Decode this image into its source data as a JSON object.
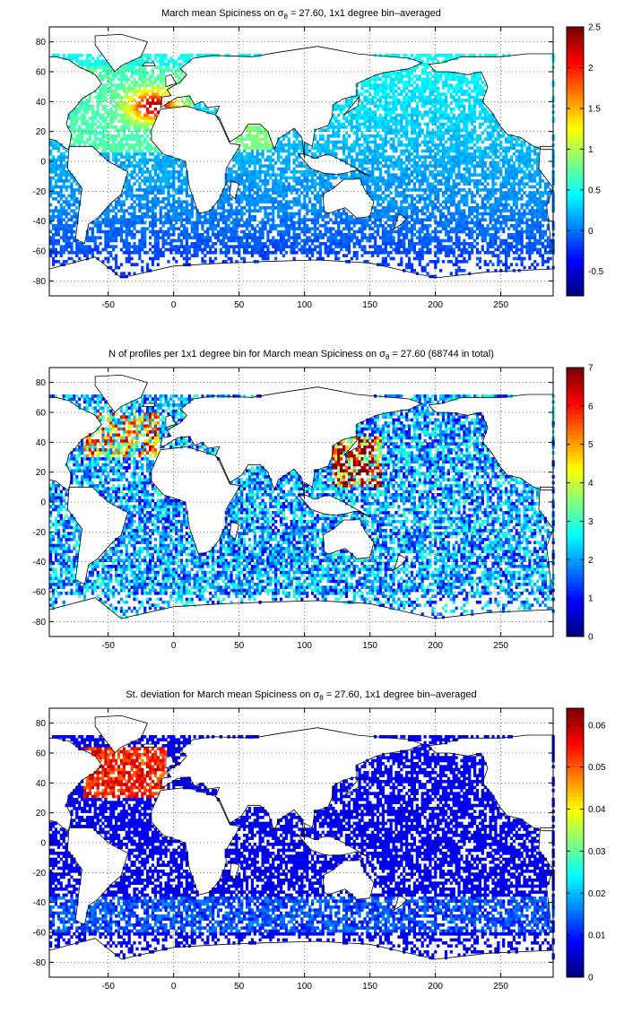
{
  "chart_data": [
    {
      "type": "heatmap",
      "title_pre": "March mean Spiciness on ",
      "title_post": " = 27.60, 1x1 degree bin–averaged",
      "xlim": [
        -95,
        290
      ],
      "ylim": [
        -90,
        90
      ],
      "xticks": [
        "-50",
        "0",
        "50",
        "100",
        "150",
        "200",
        "250"
      ],
      "yticks": [
        "80",
        "60",
        "40",
        "20",
        "0",
        "-20",
        "-40",
        "-60",
        "-80"
      ],
      "colorbar": {
        "min": -0.8,
        "max": 2.5,
        "ticks": [
          "2.5",
          "2",
          "1.5",
          "1",
          "0.5",
          "0",
          "-0.5"
        ]
      },
      "grid": true
    },
    {
      "type": "heatmap",
      "title_pre": "N of profiles per 1x1 degree bin for March mean Spiciness on ",
      "title_post": " = 27.60 (68744 in total)",
      "xlim": [
        -95,
        290
      ],
      "ylim": [
        -90,
        90
      ],
      "xticks": [
        "-50",
        "0",
        "50",
        "100",
        "150",
        "200",
        "250"
      ],
      "yticks": [
        "80",
        "60",
        "40",
        "20",
        "0",
        "-20",
        "-40",
        "-60",
        "-80"
      ],
      "colorbar": {
        "min": 0,
        "max": 7,
        "ticks": [
          "7",
          "6",
          "5",
          "4",
          "3",
          "2",
          "1",
          "0"
        ]
      },
      "total_profiles": 68744,
      "grid": true
    },
    {
      "type": "heatmap",
      "title_pre": "St. deviation for March mean Spiciness on ",
      "title_post": " = 27.60, 1x1 degree bin–averaged",
      "xlim": [
        -95,
        290
      ],
      "ylim": [
        -90,
        90
      ],
      "xticks": [
        "-50",
        "0",
        "50",
        "100",
        "150",
        "200",
        "250"
      ],
      "yticks": [
        "80",
        "60",
        "40",
        "20",
        "0",
        "-20",
        "-40",
        "-60",
        "-80"
      ],
      "colorbar": {
        "min": 0,
        "max": 0.064,
        "ticks": [
          "0.06",
          "0.05",
          "0.04",
          "0.03",
          "0.02",
          "0.01",
          "0"
        ]
      },
      "grid": true
    }
  ],
  "sigma_symbol": "σ",
  "sigma_subscript": "θ"
}
